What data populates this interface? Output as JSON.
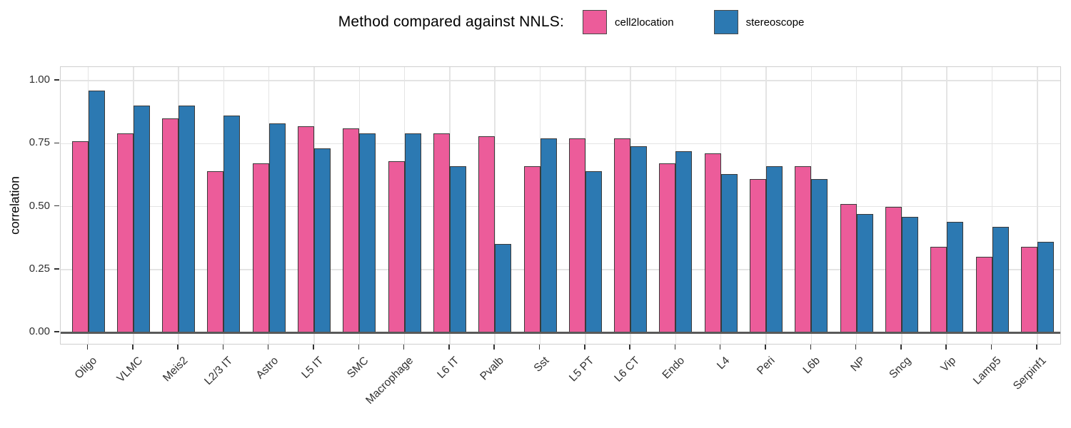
{
  "header": {
    "legend_title": "Method compared against NNLS:"
  },
  "chart_data": {
    "type": "bar",
    "title": "Method compared against NNLS:",
    "xlabel": "",
    "ylabel": "correlation",
    "ylim": [
      0,
      1.0
    ],
    "yticks": [
      0,
      0.25,
      0.5,
      0.75,
      1.0
    ],
    "grid": true,
    "legend_position": "top",
    "categories": [
      "Oligo",
      "VLMC",
      "Meis2",
      "L2/3 IT",
      "Astro",
      "L5 IT",
      "SMC",
      "Macrophage",
      "L6 IT",
      "Pvalb",
      "Sst",
      "L5 PT",
      "L6 CT",
      "Endo",
      "L4",
      "Peri",
      "L6b",
      "NP",
      "Sncg",
      "Vip",
      "Lamp5",
      "Serpinf1"
    ],
    "series": [
      {
        "name": "cell2location",
        "color": "#EC5C9A",
        "values": [
          0.76,
          0.79,
          0.85,
          0.64,
          0.67,
          0.82,
          0.81,
          0.68,
          0.79,
          0.78,
          0.66,
          0.77,
          0.77,
          0.67,
          0.71,
          0.61,
          0.66,
          0.51,
          0.5,
          0.34,
          0.3,
          0.34
        ]
      },
      {
        "name": "stereoscope",
        "color": "#2C79B2",
        "values": [
          0.96,
          0.9,
          0.9,
          0.86,
          0.83,
          0.73,
          0.79,
          0.79,
          0.66,
          0.35,
          0.77,
          0.64,
          0.74,
          0.72,
          0.63,
          0.66,
          0.61,
          0.47,
          0.46,
          0.44,
          0.42,
          0.36
        ]
      }
    ],
    "colors": {
      "bar_outline": "#3A3A3A",
      "gridline": "#E4E4E4",
      "panel_border": "#CFCFCF",
      "axis_baseline": "#595959",
      "tick_mark": "#333333",
      "tick_label": "#303030",
      "title_text": "#000000",
      "legend_swatch_border": "#4A4A4A"
    }
  }
}
